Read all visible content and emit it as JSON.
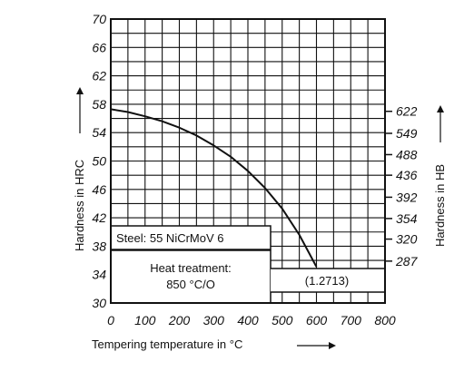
{
  "chart_data": {
    "type": "line",
    "title": "",
    "xlabel": "Tempering temperature in °C",
    "ylabel": "Hardness in HRC",
    "ylabel_right": "Hardness in HB",
    "xlim": [
      0,
      800
    ],
    "ylim": [
      30,
      70
    ],
    "grid": true,
    "x_ticks": [
      "0",
      "100",
      "200",
      "300",
      "400",
      "500",
      "600",
      "700",
      "800"
    ],
    "y_ticks": [
      "30",
      "34",
      "38",
      "42",
      "46",
      "50",
      "54",
      "58",
      "62",
      "66",
      "70"
    ],
    "y_right_ticks": [
      {
        "label": "622",
        "hrc": 57.0
      },
      {
        "label": "549",
        "hrc": 53.9
      },
      {
        "label": "488",
        "hrc": 50.9
      },
      {
        "label": "436",
        "hrc": 48.0
      },
      {
        "label": "392",
        "hrc": 44.9
      },
      {
        "label": "354",
        "hrc": 41.9
      },
      {
        "label": "320",
        "hrc": 39.0
      },
      {
        "label": "287",
        "hrc": 35.9
      }
    ],
    "series": [
      {
        "name": "",
        "x": [
          0,
          50,
          100,
          150,
          200,
          250,
          300,
          350,
          400,
          450,
          500,
          550,
          600
        ],
        "y": [
          57.3,
          56.9,
          56.3,
          55.6,
          54.7,
          53.6,
          52.2,
          50.6,
          48.6,
          46.2,
          43.3,
          39.6,
          35.1
        ]
      }
    ],
    "annotations": {
      "steel": "Steel: 55 NiCrMoV 6",
      "heat_title": "Heat treatment:",
      "heat_value": "850 °C/O",
      "material_no": "(1.2713)"
    }
  },
  "colors": {
    "ink": "#111111",
    "background": "#ffffff"
  }
}
